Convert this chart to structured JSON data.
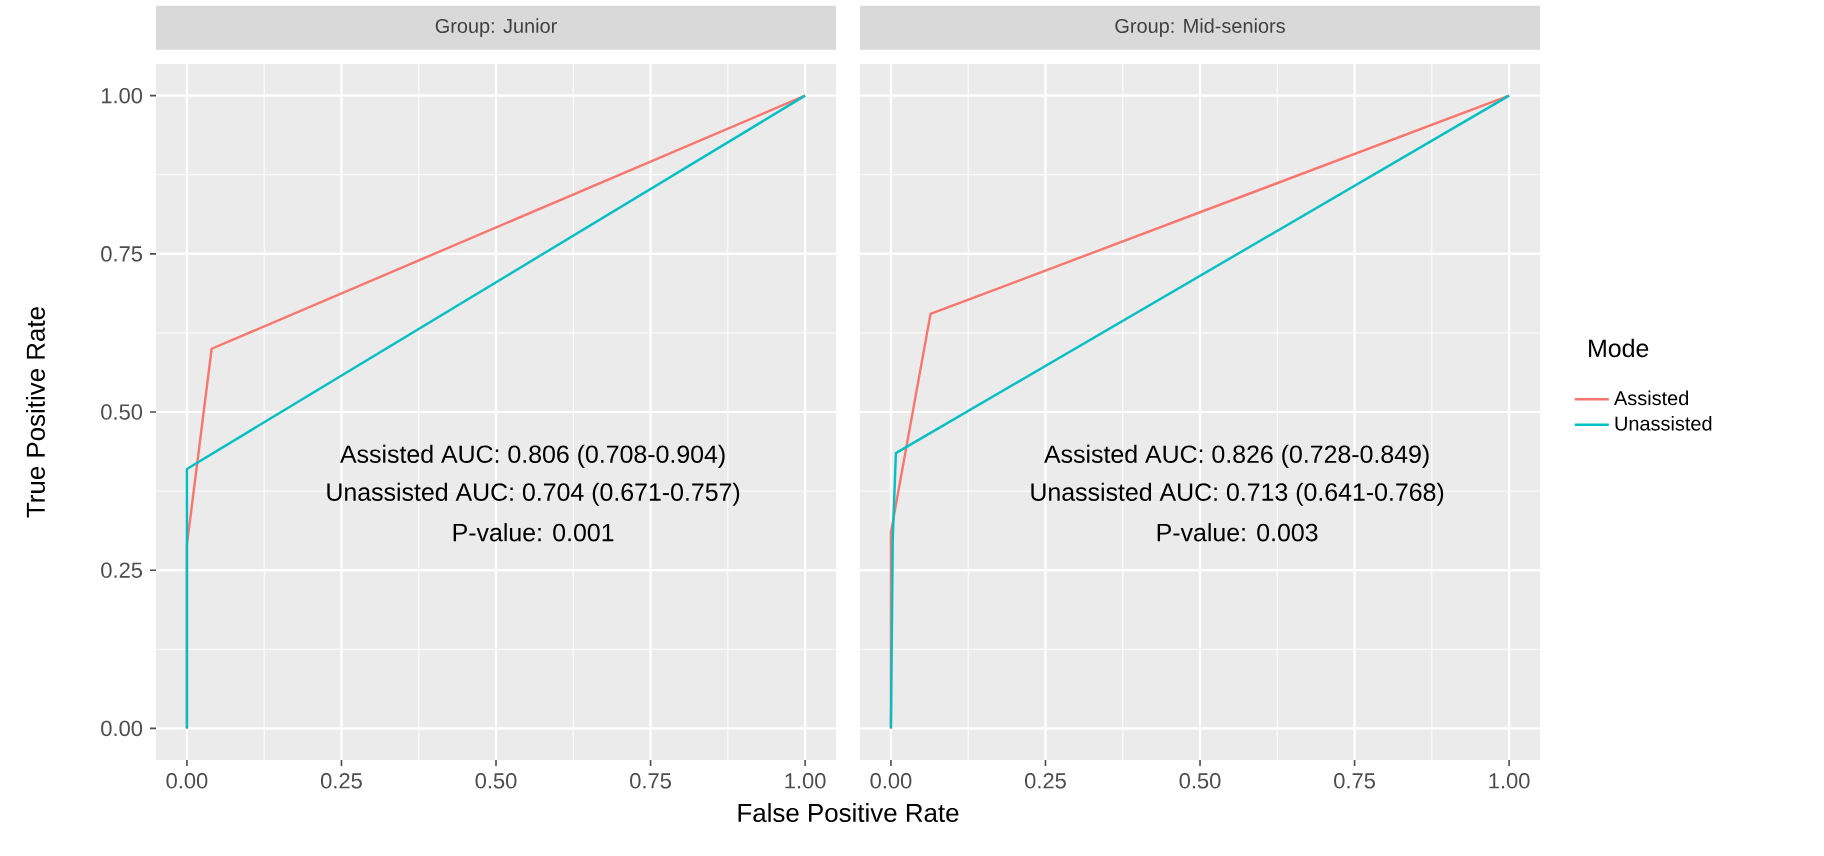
{
  "chart_data": [
    {
      "type": "line",
      "title": "Group: Junior",
      "xlabel": "False Positive Rate",
      "ylabel": "True Positive Rate",
      "xlim": [
        -0.05,
        1.05
      ],
      "ylim": [
        -0.05,
        1.05
      ],
      "xticks": [
        {
          "value": 0,
          "label": "0.00"
        },
        {
          "value": 0.25,
          "label": "0.25"
        },
        {
          "value": 0.5,
          "label": "0.50"
        },
        {
          "value": 0.75,
          "label": "0.75"
        },
        {
          "value": 1,
          "label": "1.00"
        }
      ],
      "yticks": [
        {
          "value": 0,
          "label": "0.00"
        },
        {
          "value": 0.25,
          "label": "0.25"
        },
        {
          "value": 0.5,
          "label": "0.50"
        },
        {
          "value": 0.75,
          "label": "0.75"
        },
        {
          "value": 1,
          "label": "1.00"
        }
      ],
      "grid": true,
      "legend": false,
      "series": [
        {
          "color": "#f8766d",
          "x": [
            0,
            0,
            0.04,
            1
          ],
          "values": [
            0,
            0.29,
            0.6,
            1
          ]
        },
        {
          "color": "#00bfc4",
          "x": [
            0,
            0,
            1
          ],
          "values": [
            0,
            0.41,
            1
          ]
        }
      ],
      "annotations": [
        "Assisted AUC: 0.806 (0.708-0.904)",
        "Unassisted AUC: 0.704 (0.671-0.757)",
        "P-value: 0.001"
      ]
    },
    {
      "type": "line",
      "title": "Group: Mid-seniors",
      "xlim": [
        -0.05,
        1.05
      ],
      "ylim": [
        -0.05,
        1.05
      ],
      "xticks": [
        {
          "value": 0,
          "label": "0.00"
        },
        {
          "value": 0.25,
          "label": "0.25"
        },
        {
          "value": 0.5,
          "label": "0.50"
        },
        {
          "value": 0.75,
          "label": "0.75"
        },
        {
          "value": 1,
          "label": "1.00"
        }
      ],
      "yticks": [
        0,
        0.25,
        0.5,
        0.75,
        1
      ],
      "grid": true,
      "legend": "right",
      "legend_title": "Mode",
      "tick_labels": "x",
      "series": [
        {
          "name": "Assisted",
          "color": "#f8766d",
          "x": [
            0,
            0,
            0.064,
            1
          ],
          "values": [
            0,
            0.31,
            0.655,
            1
          ]
        },
        {
          "name": "Unassisted",
          "color": "#00bfc4",
          "x": [
            0,
            0.003,
            0.008,
            1
          ],
          "values": [
            0,
            0.3,
            0.435,
            1
          ]
        }
      ],
      "annotations": [
        "Assisted AUC: 0.826 (0.728-0.849)",
        "Unassisted AUC: 0.713 (0.641-0.768)",
        "P-value: 0.003"
      ]
    }
  ]
}
